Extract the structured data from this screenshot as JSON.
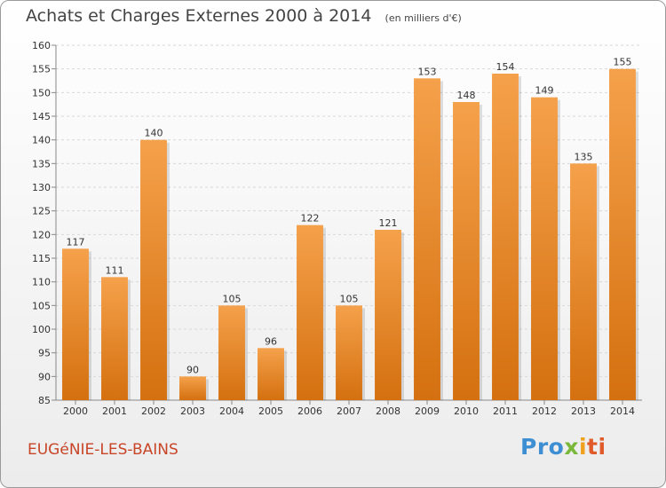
{
  "chart_data": {
    "type": "bar",
    "title": "Achats et Charges Externes 2000 à 2014",
    "unit": "(en milliers d'€)",
    "categories": [
      "2000",
      "2001",
      "2002",
      "2003",
      "2004",
      "2005",
      "2006",
      "2007",
      "2008",
      "2009",
      "2010",
      "2011",
      "2012",
      "2013",
      "2014"
    ],
    "values": [
      117,
      111,
      140,
      90,
      105,
      96,
      122,
      105,
      121,
      153,
      148,
      154,
      149,
      135,
      155
    ],
    "ylim": [
      85,
      160
    ],
    "yticks": [
      85,
      90,
      95,
      100,
      105,
      110,
      115,
      120,
      125,
      130,
      135,
      140,
      145,
      150,
      155,
      160
    ],
    "grid": true,
    "bar_color_top": "#f5a14b",
    "bar_color_bottom": "#d4700f"
  },
  "footer": {
    "town": "EUGéNIE-LES-BAINS",
    "logo": [
      "Pro",
      "x",
      "i",
      "ti"
    ]
  }
}
